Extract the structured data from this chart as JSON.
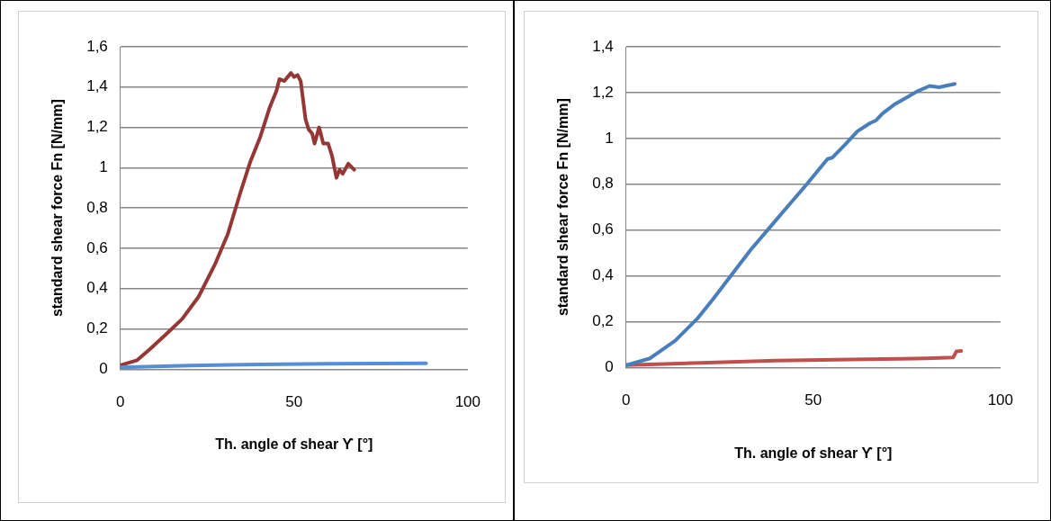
{
  "chart_data": [
    {
      "type": "line",
      "xlabel": "Th. angle of shear ϒ [°]",
      "ylabel": "standard shear force Fn [N/mm]",
      "xlim": [
        0,
        100
      ],
      "ylim": [
        0,
        1.6
      ],
      "xticks": [
        0,
        50,
        100
      ],
      "yticks": [
        {
          "value": 0,
          "label": "0"
        },
        {
          "value": 0.2,
          "label": "0,2"
        },
        {
          "value": 0.4,
          "label": "0,4"
        },
        {
          "value": 0.6,
          "label": "0,6"
        },
        {
          "value": 0.8,
          "label": "0,8"
        },
        {
          "value": 1,
          "label": "1"
        },
        {
          "value": 1.2,
          "label": "1,2"
        },
        {
          "value": 1.4,
          "label": "1,4"
        },
        {
          "value": 1.6,
          "label": "1,6"
        }
      ],
      "grid": "y",
      "legend": false,
      "marker": "none",
      "line_style": "solid",
      "series": [
        {
          "color": "#558ed5",
          "x": [
            0,
            20,
            40,
            60,
            88
          ],
          "values": [
            0.01,
            0.018,
            0.024,
            0.028,
            0.03
          ]
        },
        {
          "color": "#953735",
          "x": [
            0,
            4.8,
            8.5,
            13.2,
            17.8,
            22.5,
            27.2,
            30.9,
            34.6,
            37.4,
            40.2,
            43.0,
            44.9,
            45.8,
            47.2,
            49.1,
            50.0,
            51.0,
            51.9,
            53.3,
            54.2,
            55.2,
            55.9,
            57.2,
            58.4,
            59.8,
            60.9,
            62.2,
            63.1,
            64.0,
            65.6,
            67.3
          ],
          "values": [
            0.02,
            0.045,
            0.1,
            0.175,
            0.25,
            0.36,
            0.52,
            0.67,
            0.88,
            1.03,
            1.15,
            1.3,
            1.38,
            1.44,
            1.43,
            1.47,
            1.45,
            1.46,
            1.43,
            1.24,
            1.19,
            1.17,
            1.12,
            1.2,
            1.12,
            1.12,
            1.06,
            0.95,
            0.99,
            0.97,
            1.02,
            0.99
          ]
        }
      ]
    },
    {
      "type": "line",
      "xlabel": "Th. angle of shear ϒ [°]",
      "ylabel": "standard shear force Fn [N/mm]",
      "xlim": [
        0,
        100
      ],
      "ylim": [
        0,
        1.4
      ],
      "xticks": [
        0,
        50,
        100
      ],
      "yticks": [
        {
          "value": 0,
          "label": "0"
        },
        {
          "value": 0.2,
          "label": "0,2"
        },
        {
          "value": 0.4,
          "label": "0,4"
        },
        {
          "value": 0.6,
          "label": "0,6"
        },
        {
          "value": 0.8,
          "label": "0,8"
        },
        {
          "value": 1,
          "label": "1"
        },
        {
          "value": 1.2,
          "label": "1,2"
        },
        {
          "value": 1.4,
          "label": "1,4"
        }
      ],
      "grid": "y",
      "legend": false,
      "marker": "none",
      "line_style": "solid",
      "series": [
        {
          "color": "#4a7ebb",
          "x": [
            0,
            6.4,
            13.1,
            19,
            23.2,
            28.2,
            33.3,
            38.3,
            43.3,
            48.4,
            52.6,
            53.8,
            55.1,
            58.4,
            61.8,
            65.2,
            66.8,
            68.5,
            71.9,
            75.2,
            77.7,
            81.1,
            83.6,
            87.8
          ],
          "values": [
            0.01,
            0.04,
            0.117,
            0.213,
            0.298,
            0.405,
            0.514,
            0.61,
            0.706,
            0.803,
            0.886,
            0.91,
            0.916,
            0.971,
            1.031,
            1.067,
            1.079,
            1.109,
            1.151,
            1.181,
            1.205,
            1.229,
            1.223,
            1.238
          ]
        },
        {
          "color": "#c0504d",
          "x": [
            0,
            20,
            40,
            60,
            80,
            87.4,
            88.2,
            89.5
          ],
          "values": [
            0.01,
            0.02,
            0.03,
            0.035,
            0.04,
            0.044,
            0.07,
            0.072
          ]
        }
      ]
    }
  ]
}
